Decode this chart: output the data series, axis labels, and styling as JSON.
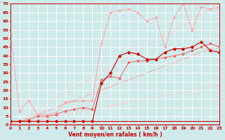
{
  "xlabel": "Vent moyen/en rafales ( km/h )",
  "xlim": [
    0,
    23
  ],
  "ylim": [
    0,
    70
  ],
  "xticks": [
    0,
    1,
    2,
    3,
    4,
    5,
    6,
    7,
    8,
    9,
    10,
    11,
    12,
    13,
    14,
    15,
    16,
    17,
    18,
    19,
    20,
    21,
    22,
    23
  ],
  "yticks": [
    0,
    5,
    10,
    15,
    20,
    25,
    30,
    35,
    40,
    45,
    50,
    55,
    60,
    65,
    70
  ],
  "bg_color": "#ceeaea",
  "grid_color": "#ffffff",
  "color_dark": "#cc0000",
  "color_mid": "#ee6666",
  "color_light": "#ffaaaa",
  "color_vlight": "#ffcccc",
  "diag_line1": {
    "x": [
      0,
      23
    ],
    "y": [
      0,
      23
    ]
  },
  "diag_line2": {
    "x": [
      0,
      23
    ],
    "y": [
      0,
      46
    ]
  },
  "diag_line3": {
    "x": [
      0,
      23
    ],
    "y": [
      0,
      70
    ]
  },
  "series_vlight": {
    "x": [
      0,
      1,
      2,
      3,
      4,
      5,
      6,
      7,
      8,
      9,
      10,
      11,
      12,
      13,
      14,
      15,
      16,
      17,
      18,
      19,
      20,
      21,
      22,
      23
    ],
    "y": [
      52,
      8,
      14,
      6,
      6,
      7,
      13,
      14,
      14,
      14,
      47,
      65,
      66,
      67,
      65,
      60,
      62,
      45,
      62,
      70,
      55,
      68,
      67,
      68
    ]
  },
  "series_light": {
    "x": [
      0,
      1,
      2,
      3,
      4,
      5,
      6,
      7,
      8,
      9,
      10,
      11,
      12,
      13,
      14,
      15,
      16,
      17,
      18,
      19,
      20,
      21,
      22,
      23
    ],
    "y": [
      2,
      2,
      3,
      5,
      5,
      6,
      8,
      9,
      10,
      9,
      26,
      28,
      27,
      36,
      37,
      37,
      38,
      39,
      40,
      41,
      43,
      45,
      47,
      45
    ]
  },
  "series_mid": {
    "x": [
      0,
      1,
      2,
      3,
      4,
      5,
      6,
      7,
      8,
      9,
      10,
      11,
      12,
      13,
      14,
      15,
      16,
      17,
      18,
      19,
      20,
      21,
      22,
      23
    ],
    "y": [
      2,
      2,
      2,
      2,
      2,
      2,
      2,
      2,
      2,
      2,
      24,
      30,
      40,
      42,
      41,
      38,
      38,
      42,
      44,
      44,
      45,
      48,
      43,
      42
    ]
  },
  "series_dark": {
    "x": [
      0,
      1,
      2,
      3,
      4,
      5,
      6,
      7,
      8,
      9,
      10,
      11,
      12,
      13,
      14,
      15,
      16,
      17,
      18,
      19,
      20,
      21,
      22,
      23
    ],
    "y": [
      2,
      2,
      2,
      2,
      2,
      2,
      2,
      2,
      2,
      2,
      2,
      2,
      2,
      2,
      2,
      2,
      2,
      2,
      2,
      2,
      2,
      2,
      2,
      2
    ]
  }
}
